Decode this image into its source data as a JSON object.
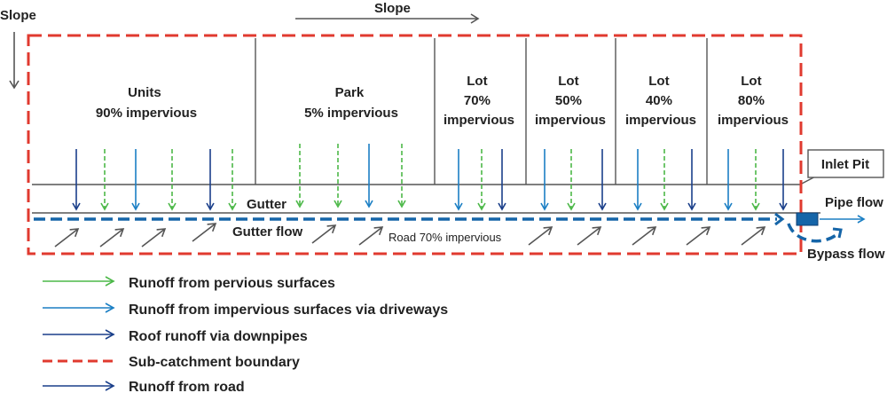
{
  "slope_left_label": "Slope",
  "slope_top_label": "Slope",
  "areas": [
    {
      "line1": "Units",
      "line2": "90% impervious"
    },
    {
      "line1": "Park",
      "line2": "5% impervious"
    },
    {
      "line1": "Lot",
      "line2": "70%",
      "line3": "impervious"
    },
    {
      "line1": "Lot",
      "line2": "50%",
      "line3": "impervious"
    },
    {
      "line1": "Lot",
      "line2": "40%",
      "line3": "impervious"
    },
    {
      "line1": "Lot",
      "line2": "80%",
      "line3": "impervious"
    }
  ],
  "gutter_label": "Gutter",
  "gutter_flow_label": "Gutter flow",
  "road_label": "Road 70% impervious",
  "inlet_pit_label": "Inlet Pit",
  "pipe_flow_label": "Pipe flow",
  "bypass_flow_label": "Bypass flow",
  "legend": [
    {
      "label": "Runoff from pervious surfaces",
      "color": "#4cb848",
      "style": "arrow"
    },
    {
      "label": "Runoff from impervious surfaces via driveways",
      "color": "#1b7fc4",
      "style": "arrow"
    },
    {
      "label": "Roof runoff via downpipes",
      "color": "#1a3f8a",
      "style": "arrow"
    },
    {
      "label": "Sub-catchment boundary",
      "color": "#e03a2f",
      "style": "dashed"
    },
    {
      "label": "Runoff from road",
      "color": "#1a3f8a",
      "style": "arrow"
    }
  ],
  "colors": {
    "pervious": "#4cb848",
    "impervious": "#1b7fc4",
    "roof": "#1a3f8a",
    "boundary": "#e03a2f",
    "line": "#555555",
    "gutter_flow": "#1565a8"
  }
}
